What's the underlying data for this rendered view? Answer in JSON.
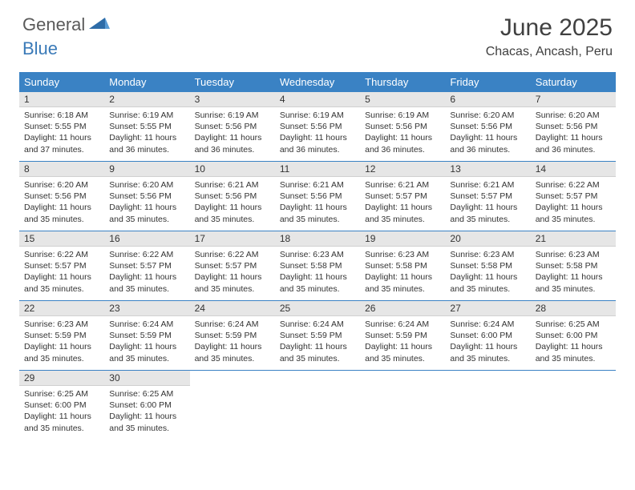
{
  "logo": {
    "word1": "General",
    "word2": "Blue"
  },
  "title": "June 2025",
  "location": "Chacas, Ancash, Peru",
  "colors": {
    "header_bg": "#3a82c4",
    "header_text": "#ffffff",
    "daynum_bg": "#e6e6e6",
    "row_border": "#3a82c4",
    "logo_gray": "#5a5a5a",
    "logo_blue": "#3a7ab8",
    "text": "#333333"
  },
  "day_names": [
    "Sunday",
    "Monday",
    "Tuesday",
    "Wednesday",
    "Thursday",
    "Friday",
    "Saturday"
  ],
  "weeks": [
    [
      {
        "n": "1",
        "sr": "6:18 AM",
        "ss": "5:55 PM",
        "dl": "11 hours and 37 minutes."
      },
      {
        "n": "2",
        "sr": "6:19 AM",
        "ss": "5:55 PM",
        "dl": "11 hours and 36 minutes."
      },
      {
        "n": "3",
        "sr": "6:19 AM",
        "ss": "5:56 PM",
        "dl": "11 hours and 36 minutes."
      },
      {
        "n": "4",
        "sr": "6:19 AM",
        "ss": "5:56 PM",
        "dl": "11 hours and 36 minutes."
      },
      {
        "n": "5",
        "sr": "6:19 AM",
        "ss": "5:56 PM",
        "dl": "11 hours and 36 minutes."
      },
      {
        "n": "6",
        "sr": "6:20 AM",
        "ss": "5:56 PM",
        "dl": "11 hours and 36 minutes."
      },
      {
        "n": "7",
        "sr": "6:20 AM",
        "ss": "5:56 PM",
        "dl": "11 hours and 36 minutes."
      }
    ],
    [
      {
        "n": "8",
        "sr": "6:20 AM",
        "ss": "5:56 PM",
        "dl": "11 hours and 35 minutes."
      },
      {
        "n": "9",
        "sr": "6:20 AM",
        "ss": "5:56 PM",
        "dl": "11 hours and 35 minutes."
      },
      {
        "n": "10",
        "sr": "6:21 AM",
        "ss": "5:56 PM",
        "dl": "11 hours and 35 minutes."
      },
      {
        "n": "11",
        "sr": "6:21 AM",
        "ss": "5:56 PM",
        "dl": "11 hours and 35 minutes."
      },
      {
        "n": "12",
        "sr": "6:21 AM",
        "ss": "5:57 PM",
        "dl": "11 hours and 35 minutes."
      },
      {
        "n": "13",
        "sr": "6:21 AM",
        "ss": "5:57 PM",
        "dl": "11 hours and 35 minutes."
      },
      {
        "n": "14",
        "sr": "6:22 AM",
        "ss": "5:57 PM",
        "dl": "11 hours and 35 minutes."
      }
    ],
    [
      {
        "n": "15",
        "sr": "6:22 AM",
        "ss": "5:57 PM",
        "dl": "11 hours and 35 minutes."
      },
      {
        "n": "16",
        "sr": "6:22 AM",
        "ss": "5:57 PM",
        "dl": "11 hours and 35 minutes."
      },
      {
        "n": "17",
        "sr": "6:22 AM",
        "ss": "5:57 PM",
        "dl": "11 hours and 35 minutes."
      },
      {
        "n": "18",
        "sr": "6:23 AM",
        "ss": "5:58 PM",
        "dl": "11 hours and 35 minutes."
      },
      {
        "n": "19",
        "sr": "6:23 AM",
        "ss": "5:58 PM",
        "dl": "11 hours and 35 minutes."
      },
      {
        "n": "20",
        "sr": "6:23 AM",
        "ss": "5:58 PM",
        "dl": "11 hours and 35 minutes."
      },
      {
        "n": "21",
        "sr": "6:23 AM",
        "ss": "5:58 PM",
        "dl": "11 hours and 35 minutes."
      }
    ],
    [
      {
        "n": "22",
        "sr": "6:23 AM",
        "ss": "5:59 PM",
        "dl": "11 hours and 35 minutes."
      },
      {
        "n": "23",
        "sr": "6:24 AM",
        "ss": "5:59 PM",
        "dl": "11 hours and 35 minutes."
      },
      {
        "n": "24",
        "sr": "6:24 AM",
        "ss": "5:59 PM",
        "dl": "11 hours and 35 minutes."
      },
      {
        "n": "25",
        "sr": "6:24 AM",
        "ss": "5:59 PM",
        "dl": "11 hours and 35 minutes."
      },
      {
        "n": "26",
        "sr": "6:24 AM",
        "ss": "5:59 PM",
        "dl": "11 hours and 35 minutes."
      },
      {
        "n": "27",
        "sr": "6:24 AM",
        "ss": "6:00 PM",
        "dl": "11 hours and 35 minutes."
      },
      {
        "n": "28",
        "sr": "6:25 AM",
        "ss": "6:00 PM",
        "dl": "11 hours and 35 minutes."
      }
    ],
    [
      {
        "n": "29",
        "sr": "6:25 AM",
        "ss": "6:00 PM",
        "dl": "11 hours and 35 minutes."
      },
      {
        "n": "30",
        "sr": "6:25 AM",
        "ss": "6:00 PM",
        "dl": "11 hours and 35 minutes."
      },
      null,
      null,
      null,
      null,
      null
    ]
  ],
  "labels": {
    "sunrise": "Sunrise:",
    "sunset": "Sunset:",
    "daylight": "Daylight:"
  }
}
